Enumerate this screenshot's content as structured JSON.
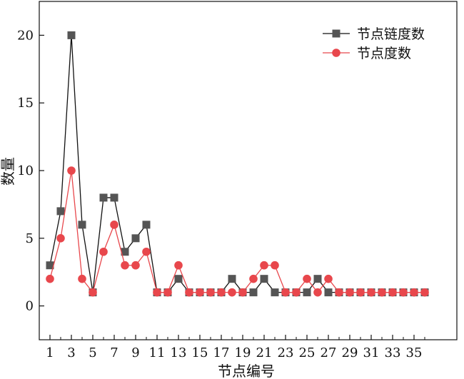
{
  "chart_data": {
    "type": "line",
    "title": "",
    "xlabel": "节点编号",
    "ylabel": "数量",
    "x": [
      1,
      2,
      3,
      4,
      5,
      6,
      7,
      8,
      9,
      10,
      11,
      12,
      13,
      14,
      15,
      16,
      17,
      18,
      19,
      20,
      21,
      22,
      23,
      24,
      25,
      26,
      27,
      28,
      29,
      30,
      31,
      32,
      33,
      34,
      35,
      36
    ],
    "xticks": [
      "1",
      "3",
      "5",
      "7",
      "9",
      "11",
      "13",
      "15",
      "17",
      "19",
      "21",
      "23",
      "25",
      "27",
      "29",
      "31",
      "33",
      "35"
    ],
    "xlim": [
      0,
      39
    ],
    "ylim": [
      -2.5,
      22.5
    ],
    "yticks": [
      "0",
      "5",
      "10",
      "15",
      "20"
    ],
    "grid": false,
    "legend_position": "top-right",
    "series": [
      {
        "name": "节点链度数",
        "color": "#555555",
        "marker": "square",
        "values": [
          3,
          7,
          20,
          6,
          1,
          8,
          8,
          4,
          5,
          6,
          1,
          1,
          2,
          1,
          1,
          1,
          1,
          2,
          1,
          1,
          2,
          1,
          1,
          1,
          1,
          2,
          1,
          1,
          1,
          1,
          1,
          1,
          1,
          1,
          1,
          1
        ]
      },
      {
        "name": "节点度数",
        "color": "#e8474c",
        "marker": "circle",
        "values": [
          2,
          5,
          10,
          2,
          1,
          4,
          6,
          3,
          3,
          4,
          1,
          1,
          3,
          1,
          1,
          1,
          1,
          1,
          1,
          2,
          3,
          3,
          1,
          1,
          2,
          1,
          2,
          1,
          1,
          1,
          1,
          1,
          1,
          1,
          1,
          1
        ]
      }
    ]
  }
}
